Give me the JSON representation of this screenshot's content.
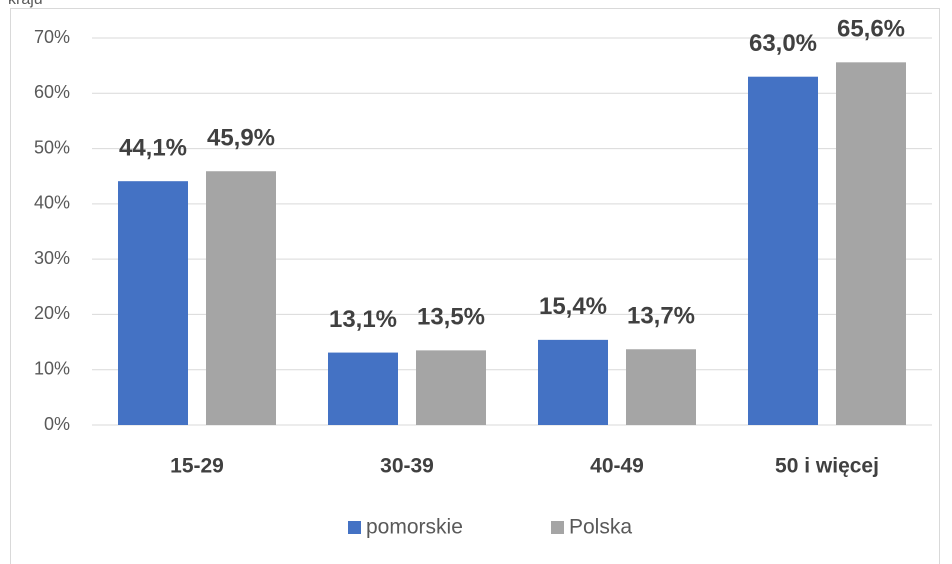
{
  "chart_data": {
    "type": "bar",
    "caption": "kraju",
    "categories": [
      "15-29",
      "30-39",
      "40-49",
      "50 i więcej"
    ],
    "series": [
      {
        "name": "pomorskie",
        "color": "#4472c4",
        "values": [
          44.1,
          13.1,
          15.4,
          63.0
        ],
        "value_labels": [
          "44,1%",
          "13,1%",
          "15,4%",
          "63,0%"
        ]
      },
      {
        "name": "Polska",
        "color": "#a5a5a5",
        "values": [
          45.9,
          13.5,
          13.7,
          65.6
        ],
        "value_labels": [
          "45,9%",
          "13,5%",
          "13,7%",
          "65,6%"
        ]
      }
    ],
    "ylim": [
      0,
      70
    ],
    "yticks": [
      {
        "value": 0,
        "label": "0%"
      },
      {
        "value": 10,
        "label": "10%"
      },
      {
        "value": 20,
        "label": "20%"
      },
      {
        "value": 30,
        "label": "30%"
      },
      {
        "value": 40,
        "label": "40%"
      },
      {
        "value": 50,
        "label": "50%"
      },
      {
        "value": 60,
        "label": "60%"
      },
      {
        "value": 70,
        "label": "70%"
      }
    ],
    "grid": true,
    "legend": "bottom"
  }
}
